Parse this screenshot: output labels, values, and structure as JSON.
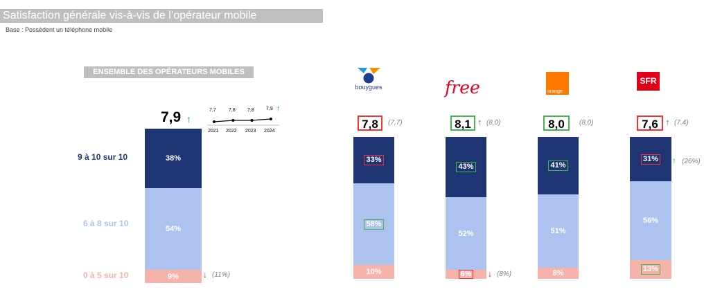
{
  "title": "Satisfaction générale vis-à-vis de l’opérateur mobile",
  "base": "Base : Possèdent un téléphone mobile",
  "ensemble_header": "ENSEMBLE DES OPÉRATEURS MOBILES",
  "band_labels": [
    "9 à 10 sur 10",
    "6 à 8 sur 10",
    "0 à 5 sur 10"
  ],
  "colors": {
    "top": "#1f3473",
    "mid": "#aec2f0",
    "low": "#f7b2ab",
    "up": "#00b050",
    "down": "#ff0000",
    "boxRed": "#ff2d2d",
    "boxGreen": "#43b649"
  },
  "overall": {
    "score": "7,9",
    "trend": {
      "years": [
        "2021",
        "2022",
        "2023",
        "2024"
      ],
      "values": [
        7.7,
        7.8,
        7.8,
        7.9
      ],
      "labels": [
        "7,7",
        "7,8",
        "7,8",
        "7,9"
      ]
    },
    "top_pct": "38%",
    "mid_pct": "54%",
    "low_pct": "9%",
    "low_prev": "(11%)"
  },
  "operators": [
    {
      "name": "Bouygues",
      "logo_text": "bouygues",
      "score": "7,8",
      "prev": "(7,7)",
      "score_box": "red",
      "top_pct": "33%",
      "mid_pct": "58%",
      "low_pct": "10%",
      "top_box": "red",
      "mid_box": "green",
      "low_box": "",
      "top_prev": "",
      "low_prev": ""
    },
    {
      "name": "Free",
      "logo_text": "free",
      "score": "8,1",
      "prev": "(8,0)",
      "score_box": "green",
      "top_pct": "43%",
      "mid_pct": "52%",
      "low_pct": "6%",
      "top_box": "green",
      "mid_box": "",
      "low_box": "red",
      "top_prev": "",
      "low_prev": "(8%)"
    },
    {
      "name": "Orange",
      "logo_text": "orange",
      "score": "8,0",
      "prev": "(8,0)",
      "score_box": "green",
      "top_pct": "41%",
      "mid_pct": "51%",
      "low_pct": "8%",
      "top_box": "green",
      "mid_box": "",
      "low_box": "",
      "top_prev": "",
      "low_prev": ""
    },
    {
      "name": "SFR",
      "logo_text": "SFR",
      "score": "7,6",
      "prev": "(7,4)",
      "score_box": "red",
      "top_pct": "31%",
      "mid_pct": "56%",
      "low_pct": "13%",
      "top_box": "red",
      "mid_box": "",
      "low_box": "green",
      "top_prev": "(26%)",
      "low_prev": ""
    }
  ],
  "chart_data": {
    "type": "bar",
    "stacked": true,
    "categories": [
      "Ensemble",
      "Bouygues",
      "Free",
      "Orange",
      "SFR"
    ],
    "series": [
      {
        "name": "9 à 10 sur 10",
        "values": [
          38,
          33,
          43,
          41,
          31
        ]
      },
      {
        "name": "6 à 8 sur 10",
        "values": [
          54,
          58,
          52,
          51,
          56
        ]
      },
      {
        "name": "0 à 5 sur 10",
        "values": [
          9,
          10,
          6,
          8,
          13
        ]
      }
    ],
    "scores": [
      7.9,
      7.8,
      8.1,
      8.0,
      7.6
    ],
    "previous_scores": [
      null,
      7.7,
      8.0,
      8.0,
      7.4
    ],
    "trend": {
      "x": [
        2021,
        2022,
        2023,
        2024
      ],
      "y": [
        7.7,
        7.8,
        7.8,
        7.9
      ]
    }
  }
}
